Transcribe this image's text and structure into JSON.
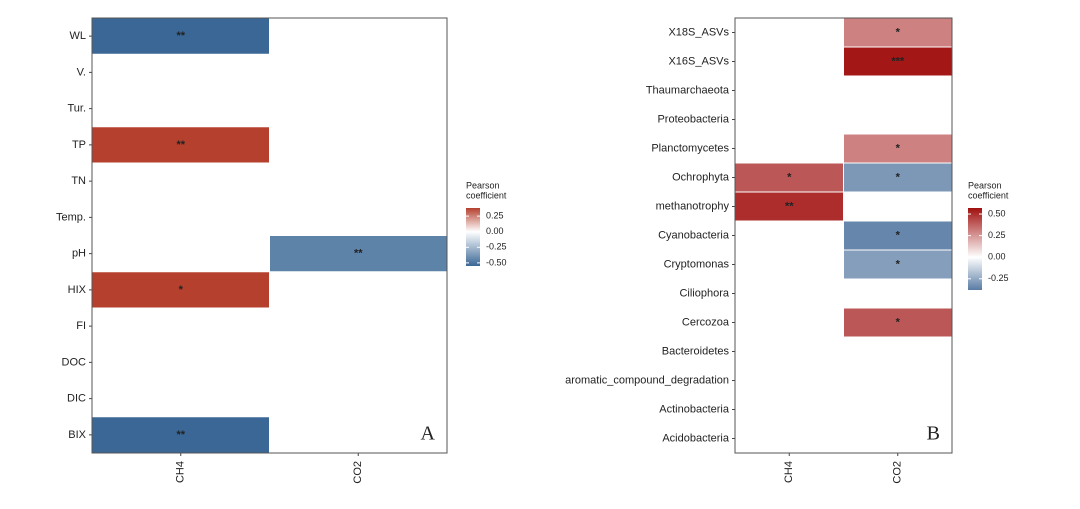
{
  "chart_data": [
    {
      "type": "heatmap",
      "panel_label": "A",
      "rows": [
        "WL",
        "V.",
        "Tur.",
        "TP",
        "TN",
        "Temp.",
        "pH",
        "HIX",
        "FI",
        "DOC",
        "DIC",
        "BIX"
      ],
      "columns": [
        "CH4",
        "CO2"
      ],
      "values": [
        [
          -0.55,
          null
        ],
        [
          null,
          null
        ],
        [
          null,
          null
        ],
        [
          0.38,
          null
        ],
        [
          null,
          null
        ],
        [
          null,
          null
        ],
        [
          null,
          -0.45
        ],
        [
          0.38,
          null
        ],
        [
          null,
          null
        ],
        [
          null,
          null
        ],
        [
          null,
          null
        ],
        [
          -0.55,
          null
        ]
      ],
      "annotations": [
        [
          "**",
          null
        ],
        [
          null,
          null
        ],
        [
          null,
          null
        ],
        [
          "**",
          null
        ],
        [
          null,
          null
        ],
        [
          null,
          null
        ],
        [
          null,
          "**"
        ],
        [
          "*",
          null
        ],
        [
          null,
          null
        ],
        [
          null,
          null
        ],
        [
          null,
          null
        ],
        [
          "**",
          null
        ]
      ],
      "colorbar_title": [
        "Pearson",
        "coefficient"
      ],
      "clim": [
        -0.55,
        0.38
      ],
      "cticks": [
        0.25,
        {
          "value": 0,
          "label": "0.00"
        },
        -0.25,
        {
          "value": -0.5,
          "label": "-0.50"
        }
      ],
      "colors": {
        "low": "#3a6795",
        "mid": "#ffffff",
        "high": "#b5402e"
      }
    },
    {
      "type": "heatmap",
      "panel_label": "B",
      "rows": [
        "X18S_ASVs",
        "X16S_ASVs",
        "Thaumarchaeota",
        "Proteobacteria",
        "Planctomycetes",
        "Ochrophyta",
        "methanotrophy",
        "Cyanobacteria",
        "Cryptomonas",
        "Ciliophora",
        "Cercozoa",
        "Bacteroidetes",
        "aromatic_compound_degradation",
        "Actinobacteria",
        "Acidobacteria"
      ],
      "columns": [
        "CH4",
        "CO2"
      ],
      "values": [
        [
          null,
          0.3
        ],
        [
          null,
          0.55
        ],
        [
          null,
          null
        ],
        [
          null,
          null
        ],
        [
          null,
          0.3
        ],
        [
          0.4,
          -0.3
        ],
        [
          0.5,
          null
        ],
        [
          null,
          -0.35
        ],
        [
          null,
          -0.28
        ],
        [
          null,
          null
        ],
        [
          null,
          0.4
        ],
        [
          null,
          null
        ],
        [
          null,
          null
        ],
        [
          null,
          null
        ],
        [
          null,
          null
        ]
      ],
      "annotations": [
        [
          null,
          "*"
        ],
        [
          null,
          "***"
        ],
        [
          null,
          null
        ],
        [
          null,
          null
        ],
        [
          null,
          "*"
        ],
        [
          "*",
          "*"
        ],
        [
          "**",
          null
        ],
        [
          null,
          "*"
        ],
        [
          null,
          "*"
        ],
        [
          null,
          null
        ],
        [
          null,
          "*"
        ],
        [
          null,
          null
        ],
        [
          null,
          null
        ],
        [
          null,
          null
        ],
        [
          null,
          null
        ]
      ],
      "colorbar_title": [
        "Pearson",
        "coefficient"
      ],
      "clim": [
        -0.38,
        0.57
      ],
      "cticks": [
        {
          "value": 0.5,
          "label": "0.50"
        },
        0.25,
        {
          "value": 0,
          "label": "0.00"
        },
        -0.25
      ],
      "colors": {
        "low": "#5a7ca4",
        "mid": "#ffffff",
        "high": "#a0100f"
      }
    }
  ]
}
